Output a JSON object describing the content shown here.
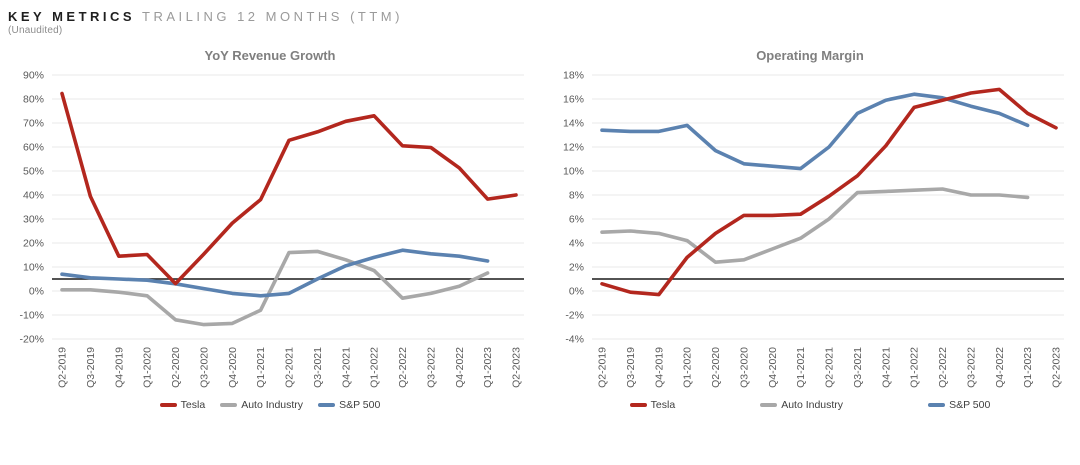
{
  "header": {
    "title_primary": "KEY METRICS",
    "title_secondary": "TRAILING 12 MONTHS (TTM)",
    "subtitle": "(Unaudited)"
  },
  "colors": {
    "tesla": "#b3271e",
    "auto_industry": "#a8a8a8",
    "sp500": "#5b82b0",
    "reference_line": "#1a1a1a",
    "gridline": "#e8e8e8",
    "axis_text": "#595959",
    "title_text": "#7f7f7f"
  },
  "chart_data": [
    {
      "type": "line",
      "title": "YoY Revenue Growth",
      "categories": [
        "Q2-2019",
        "Q3-2019",
        "Q4-2019",
        "Q1-2020",
        "Q2-2020",
        "Q3-2020",
        "Q4-2020",
        "Q1-2021",
        "Q2-2021",
        "Q3-2021",
        "Q4-2021",
        "Q1-2022",
        "Q2-2022",
        "Q3-2022",
        "Q4-2022",
        "Q1-2023",
        "Q2-2023"
      ],
      "series": [
        {
          "name": "Tesla",
          "color_key": "tesla",
          "z": 3,
          "values": [
            82.3,
            39.4,
            14.5,
            15.2,
            3.1,
            15.4,
            28.3,
            38.1,
            62.8,
            66.3,
            70.7,
            73.0,
            60.5,
            59.8,
            51.3,
            38.3,
            40.0
          ]
        },
        {
          "name": "Auto Industry",
          "color_key": "auto_industry",
          "z": 1,
          "values": [
            0.5,
            0.5,
            -0.5,
            -2.0,
            -12.0,
            -14.0,
            -13.5,
            -8.0,
            16.0,
            16.5,
            13.0,
            8.5,
            -3.0,
            -1.0,
            2.0,
            7.5,
            null
          ]
        },
        {
          "name": "S&P 500",
          "color_key": "sp500",
          "z": 2,
          "values": [
            7.0,
            5.5,
            5.0,
            4.5,
            3.0,
            1.0,
            -1.0,
            -2.0,
            -1.0,
            5.0,
            10.5,
            14.0,
            17.0,
            15.5,
            14.5,
            12.5,
            null
          ]
        }
      ],
      "ylim": [
        -20,
        90
      ],
      "ytick_step": 10,
      "ytick_suffix": "%",
      "reference_line_y": 5,
      "grid": true,
      "legend_position": "bottom"
    },
    {
      "type": "line",
      "title": "Operating Margin",
      "categories": [
        "Q2-2019",
        "Q3-2019",
        "Q4-2019",
        "Q1-2020",
        "Q2-2020",
        "Q3-2020",
        "Q4-2020",
        "Q1-2021",
        "Q2-2021",
        "Q3-2021",
        "Q4-2021",
        "Q1-2022",
        "Q2-2022",
        "Q3-2022",
        "Q4-2022",
        "Q1-2023",
        "Q2-2023"
      ],
      "series": [
        {
          "name": "Tesla",
          "color_key": "tesla",
          "z": 3,
          "values": [
            0.6,
            -0.1,
            -0.3,
            2.8,
            4.8,
            6.3,
            6.3,
            6.4,
            7.9,
            9.6,
            12.1,
            15.3,
            15.9,
            16.5,
            16.8,
            14.8,
            13.6
          ]
        },
        {
          "name": "Auto Industry",
          "color_key": "auto_industry",
          "z": 1,
          "values": [
            4.9,
            5.0,
            4.8,
            4.2,
            2.4,
            2.6,
            3.5,
            4.4,
            6.0,
            8.2,
            8.3,
            8.4,
            8.5,
            8.0,
            8.0,
            7.8,
            null
          ]
        },
        {
          "name": "S&P 500",
          "color_key": "sp500",
          "z": 2,
          "values": [
            13.4,
            13.3,
            13.3,
            13.8,
            11.7,
            10.6,
            10.4,
            10.2,
            12.0,
            14.8,
            15.9,
            16.4,
            16.1,
            15.4,
            14.8,
            13.8,
            null
          ]
        }
      ],
      "ylim": [
        -4,
        18
      ],
      "ytick_step": 2,
      "ytick_suffix": "%",
      "reference_line_y": 1,
      "grid": true,
      "legend_position": "bottom"
    }
  ]
}
